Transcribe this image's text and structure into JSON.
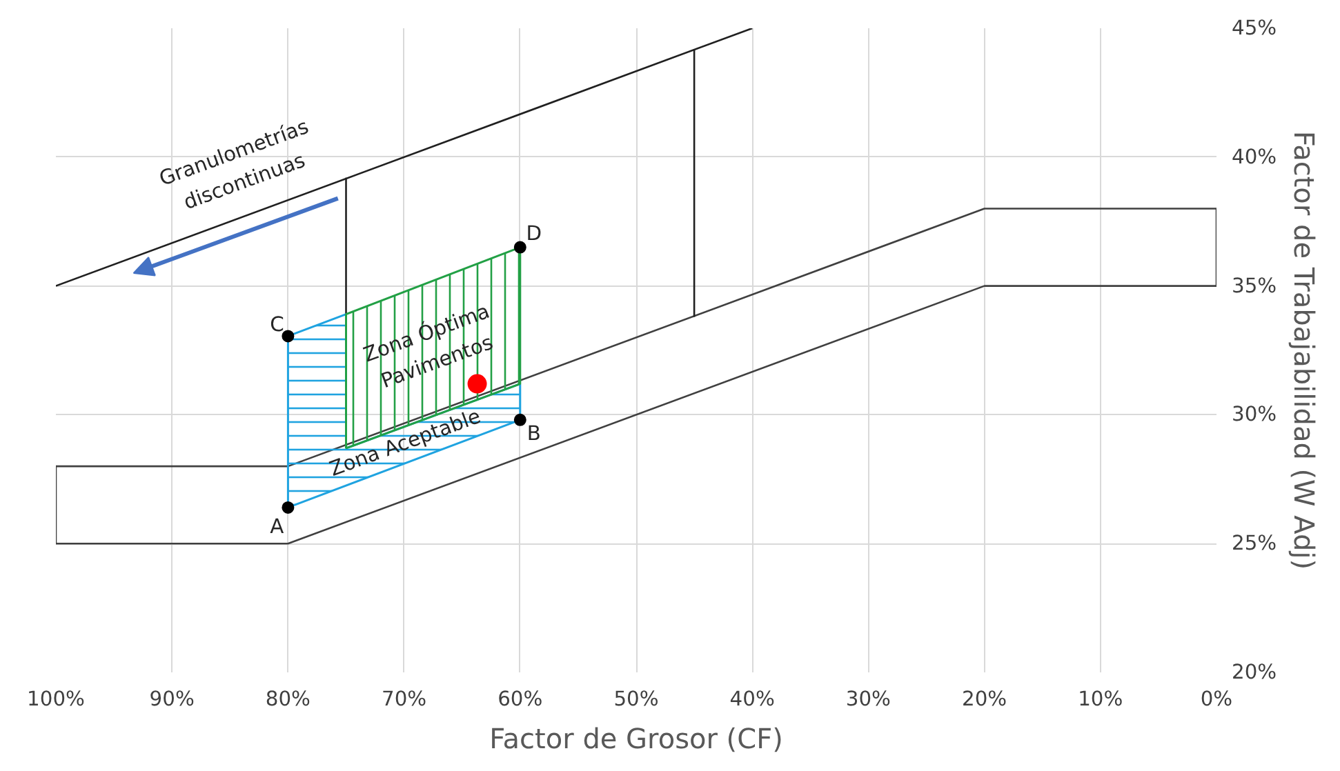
{
  "chart_data": {
    "type": "line",
    "xlabel": "Factor de Grosor (CF)",
    "ylabel": "Factor de Trabajabilidad (W Adj)",
    "xlim": [
      100,
      0
    ],
    "ylim": [
      20,
      45
    ],
    "xticks": [
      {
        "value": 100,
        "label": "100%"
      },
      {
        "value": 90,
        "label": "90%"
      },
      {
        "value": 80,
        "label": "80%"
      },
      {
        "value": 70,
        "label": "70%"
      },
      {
        "value": 60,
        "label": "60%"
      },
      {
        "value": 50,
        "label": "50%"
      },
      {
        "value": 40,
        "label": "40%"
      },
      {
        "value": 30,
        "label": "30%"
      },
      {
        "value": 20,
        "label": "20%"
      },
      {
        "value": 10,
        "label": "10%"
      },
      {
        "value": 0,
        "label": "0%"
      }
    ],
    "yticks": [
      {
        "value": 20,
        "label": "20%"
      },
      {
        "value": 25,
        "label": "25%"
      },
      {
        "value": 30,
        "label": "30%"
      },
      {
        "value": 35,
        "label": "35%"
      },
      {
        "value": 40,
        "label": "40%"
      },
      {
        "value": 45,
        "label": "45%"
      }
    ],
    "grid": true,
    "series": [
      {
        "color": "#404040",
        "x": [
          100,
          80,
          20,
          0
        ],
        "values": [
          25,
          25,
          35,
          35
        ]
      },
      {
        "color": "#404040",
        "x": [
          100,
          80,
          20,
          0
        ],
        "values": [
          28,
          28,
          38,
          38
        ]
      },
      {
        "color": "#404040",
        "x": [
          100,
          100
        ],
        "values": [
          25,
          28
        ]
      },
      {
        "color": "#404040",
        "x": [
          0,
          0
        ],
        "values": [
          35,
          38
        ]
      },
      {
        "color": "#202020",
        "x": [
          100,
          40
        ],
        "values": [
          35,
          45
        ]
      },
      {
        "color": "#202020",
        "x": [
          75,
          75
        ],
        "values": [
          33.9,
          39.2
        ]
      },
      {
        "color": "#202020",
        "x": [
          45,
          45
        ],
        "values": [
          33.8,
          44.2
        ]
      },
      {
        "type": "area",
        "color": "#1fa3e0",
        "x": [
          80,
          80,
          75,
          75,
          60,
          60
        ],
        "values": [
          26.4,
          33.05,
          33.9,
          28.7,
          31.2,
          29.8
        ]
      },
      {
        "type": "area",
        "color": "#22a045",
        "x": [
          75,
          75,
          60,
          60
        ],
        "values": [
          28.7,
          33.9,
          36.5,
          31.2
        ]
      },
      {
        "type": "scatter",
        "color": "#000000",
        "marker": "circle",
        "x": [
          80,
          60,
          80,
          60
        ],
        "values": [
          26.4,
          29.8,
          33.05,
          36.5
        ]
      },
      {
        "type": "scatter",
        "color": "#ff0000",
        "marker": "circle",
        "x": [
          63.7
        ],
        "values": [
          31.2
        ]
      }
    ],
    "annotations": [
      "A",
      "B",
      "C",
      "D",
      "Granulometrías\ndiscontinuas",
      "Zona Óptima\nPavimentos",
      "Zona Aceptable"
    ]
  }
}
